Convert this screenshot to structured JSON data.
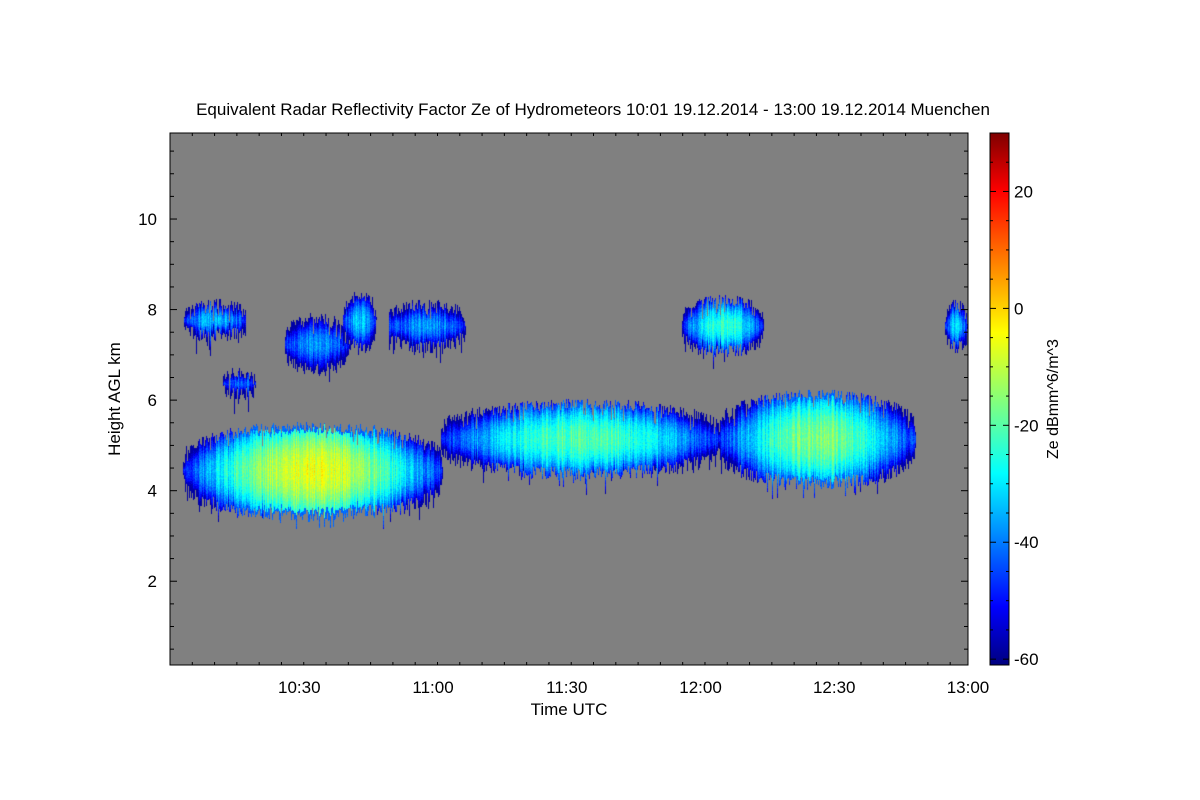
{
  "chart_data": {
    "type": "heatmap",
    "title": "Equivalent Radar Reflectivity Factor Ze of Hydrometeors   10:01 19.12.2014 - 13:00 19.12.2014 Muenchen",
    "xlabel": "Time UTC",
    "ylabel": "Height AGL km",
    "x_ticks": [
      "10:30",
      "11:00",
      "11:30",
      "12:00",
      "12:30",
      "13:00"
    ],
    "x_tick_minutes": [
      30,
      60,
      90,
      120,
      150,
      180
    ],
    "xlim_minutes": [
      1,
      180
    ],
    "y_ticks": [
      2,
      4,
      6,
      8,
      10
    ],
    "ylim": [
      0.15,
      11.9
    ],
    "background_color": "#808080",
    "colorbar": {
      "label": "Ze dBmm^6/m^3",
      "range": [
        -61,
        30
      ],
      "ticks": [
        -60,
        -40,
        -20,
        0,
        20
      ],
      "colormap": "jet"
    },
    "clouds": [
      {
        "t_start": 4,
        "t_end": 18,
        "base": 7.45,
        "top": 8.1,
        "core": -34
      },
      {
        "t_start": 13,
        "t_end": 20,
        "base": 6.15,
        "top": 6.6,
        "core": -42
      },
      {
        "t_start": 27,
        "t_end": 41,
        "base": 6.7,
        "top": 7.8,
        "core": -38
      },
      {
        "t_start": 40,
        "t_end": 47,
        "base": 7.2,
        "top": 8.3,
        "core": -33
      },
      {
        "t_start": 50,
        "t_end": 67,
        "base": 7.2,
        "top": 8.1,
        "core": -38
      },
      {
        "t_start": 4,
        "t_end": 62,
        "base": 3.5,
        "top": 5.4,
        "core": -6
      },
      {
        "t_start": 62,
        "t_end": 124,
        "base": 4.4,
        "top": 5.9,
        "core": -20
      },
      {
        "t_start": 124,
        "t_end": 168,
        "base": 4.2,
        "top": 6.1,
        "core": -16
      },
      {
        "t_start": 116,
        "t_end": 134,
        "base": 7.1,
        "top": 8.2,
        "core": -22
      },
      {
        "t_start": 175,
        "t_end": 180,
        "base": 7.2,
        "top": 8.1,
        "core": -32
      }
    ]
  }
}
